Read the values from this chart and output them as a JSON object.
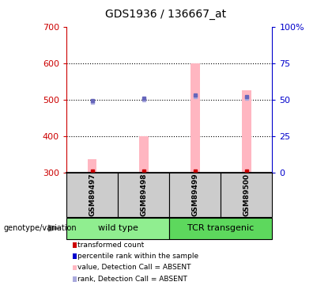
{
  "title": "GDS1936 / 136667_at",
  "samples": [
    "GSM89497",
    "GSM89498",
    "GSM89499",
    "GSM89500"
  ],
  "groups": [
    {
      "name": "wild type",
      "sample_indices": [
        0,
        1
      ],
      "color": "#90EE90"
    },
    {
      "name": "TCR transgenic",
      "sample_indices": [
        2,
        3
      ],
      "color": "#5DD85D"
    }
  ],
  "pink_bar_values": [
    335,
    400,
    600,
    525
  ],
  "blue_sq_values": [
    49,
    51,
    53,
    52
  ],
  "blue_sq_lower_values": [
    48,
    50,
    52,
    51
  ],
  "red_sq_values": [
    300,
    300,
    300,
    300
  ],
  "ylim_left": [
    300,
    700
  ],
  "ylim_right": [
    0,
    100
  ],
  "yticks_left": [
    300,
    400,
    500,
    600,
    700
  ],
  "yticks_right": [
    0,
    25,
    50,
    75,
    100
  ],
  "ytick_labels_right": [
    "0",
    "25",
    "50",
    "75",
    "100%"
  ],
  "left_axis_color": "#CC0000",
  "right_axis_color": "#0000CC",
  "pink_color": "#FFB6C1",
  "blue_color": "#6666BB",
  "light_blue_color": "#AAAADD",
  "red_color": "#CC0000",
  "bg_color": "#CCCCCC",
  "legend_items": [
    {
      "color": "#CC0000",
      "label": "transformed count"
    },
    {
      "color": "#0000CC",
      "label": "percentile rank within the sample"
    },
    {
      "color": "#FFB6C1",
      "label": "value, Detection Call = ABSENT"
    },
    {
      "color": "#AAAADD",
      "label": "rank, Detection Call = ABSENT"
    }
  ]
}
